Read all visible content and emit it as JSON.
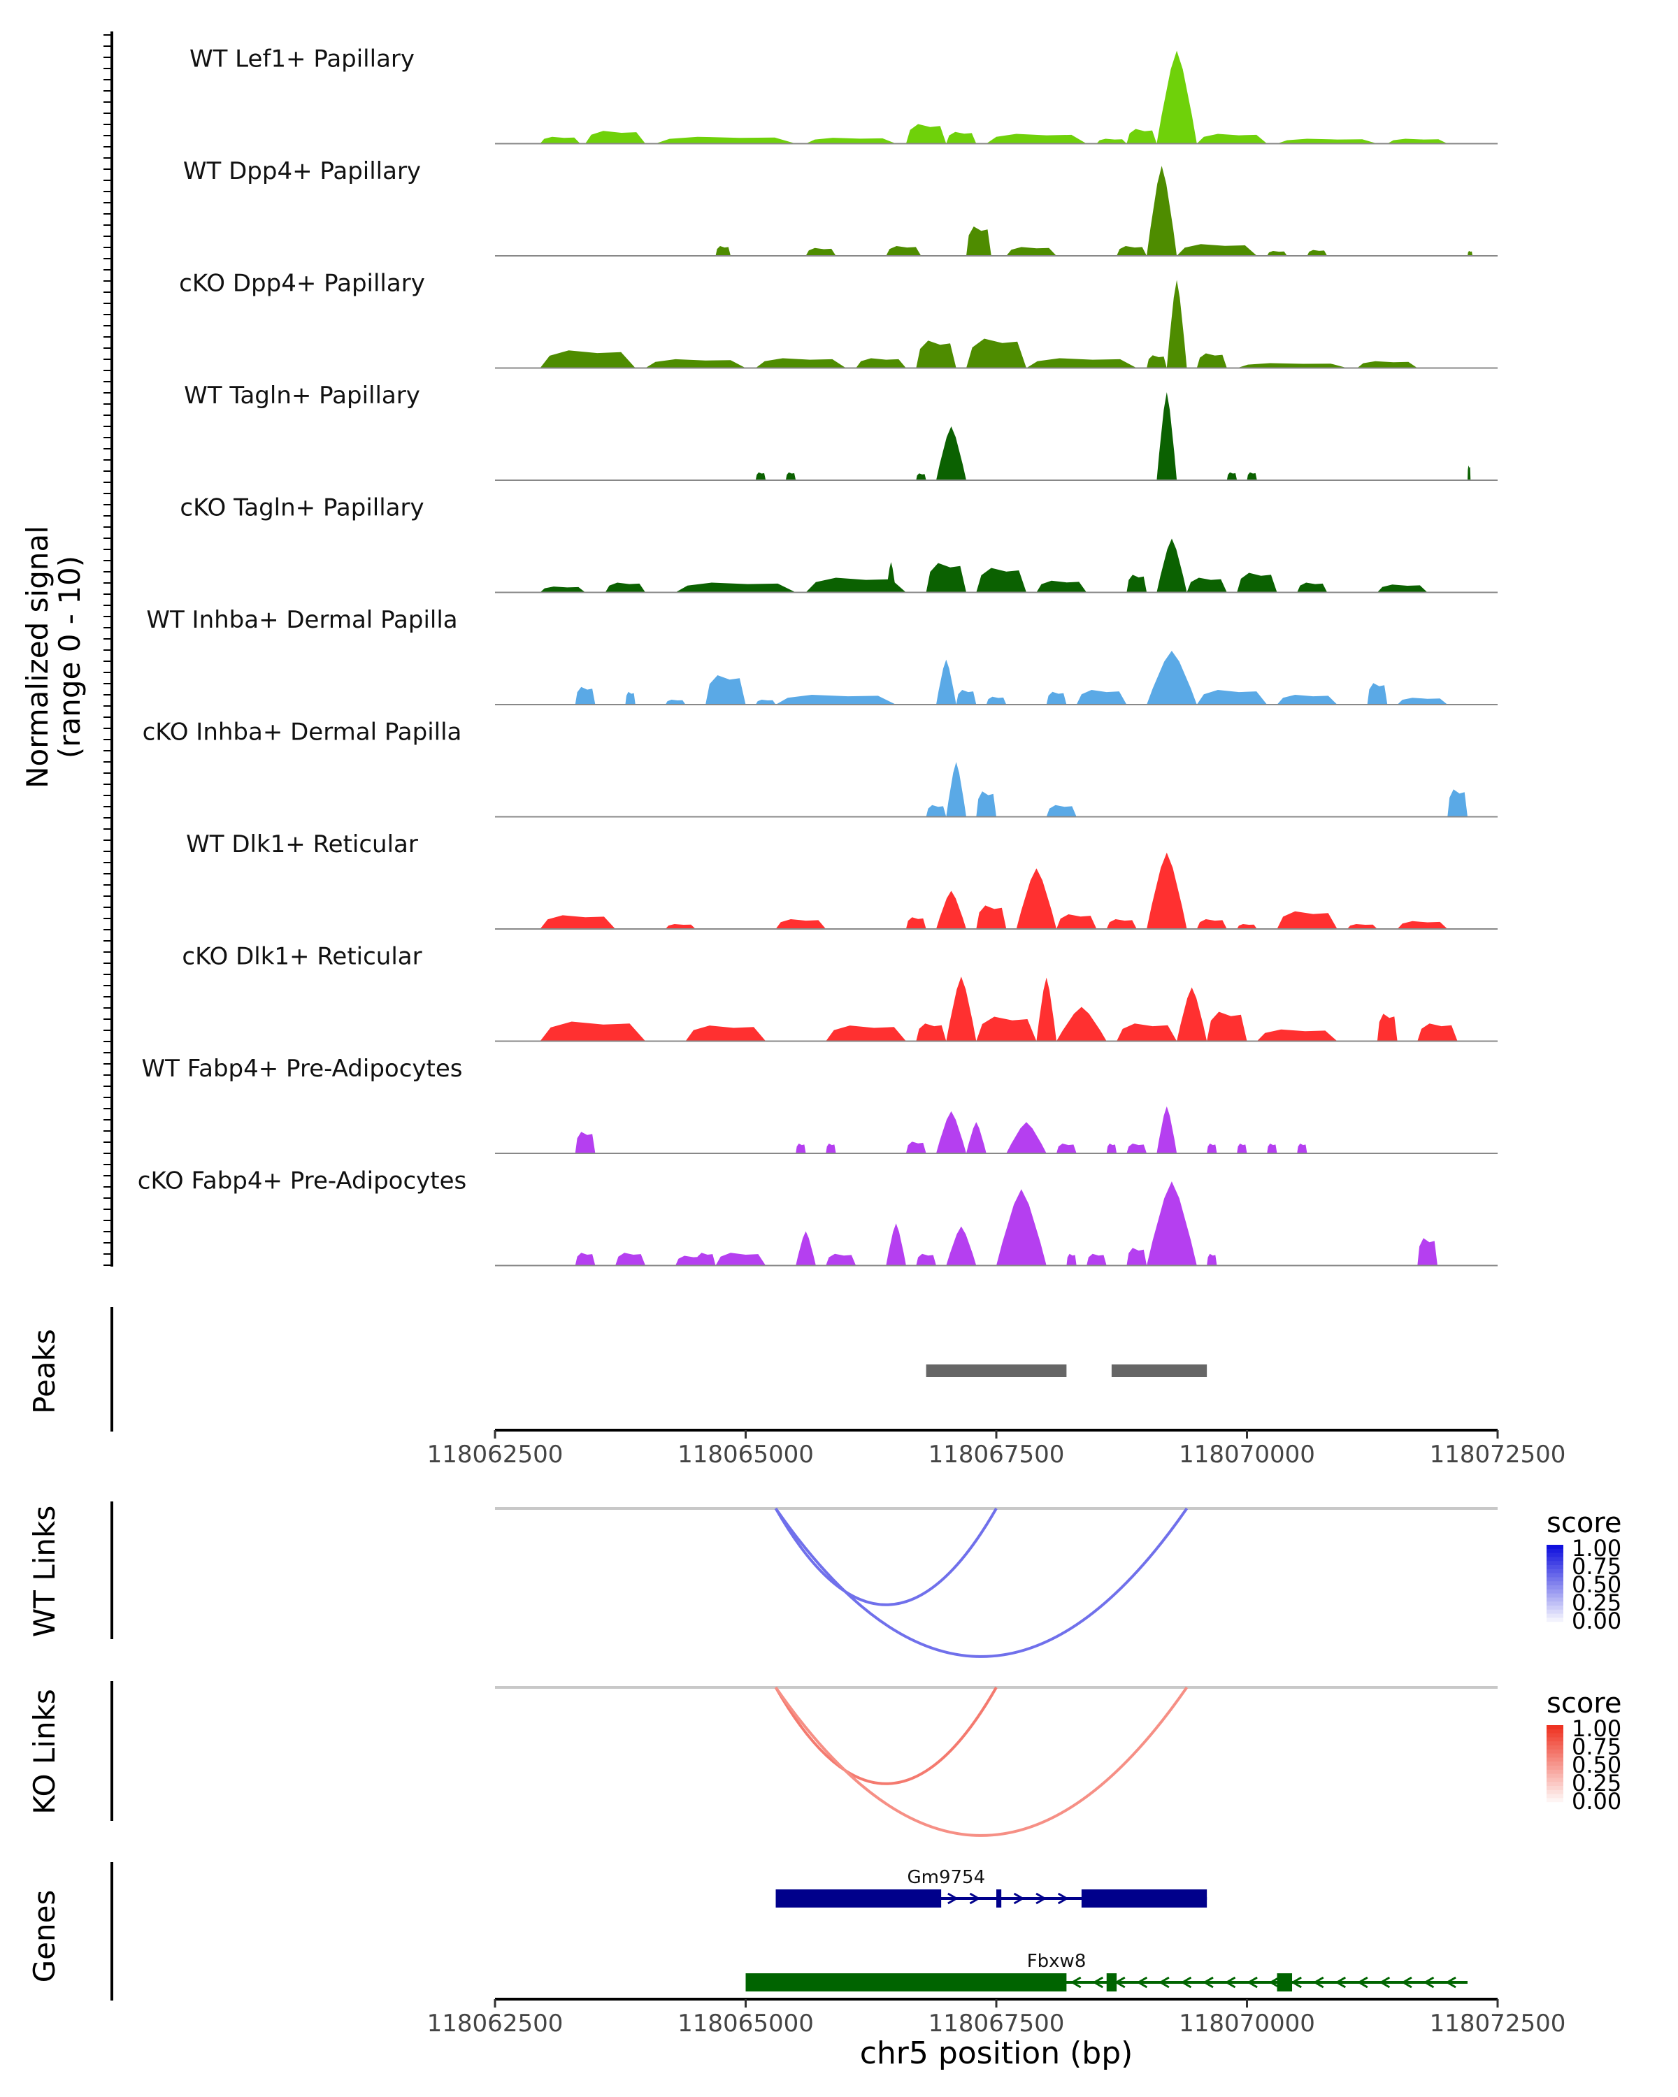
{
  "chart_data": {
    "type": "area",
    "title": "",
    "chromosome": "chr5",
    "xlim": [
      118062500,
      118072500
    ],
    "xlabel": "chr5 position (bp)",
    "x_ticks": [
      118062500,
      118065000,
      118067500,
      118070000,
      118072500
    ],
    "x_tick_labels": [
      "118062500",
      "118065000",
      "118067500",
      "118070000",
      "118072500"
    ],
    "coverage": {
      "ylabel_line1": "Normalized signal",
      "ylabel_line2": "(range 0 - 10)",
      "ylim": [
        0,
        10
      ],
      "tracks": [
        {
          "name": "WT Lef1+ Papillary",
          "color": "#6fd10a",
          "segments": [
            [
              118062950,
              118063350,
              0.7
            ],
            [
              118063400,
              118064000,
              1.3
            ],
            [
              118064100,
              118065500,
              0.7
            ],
            [
              118065600,
              118066500,
              0.6
            ],
            [
              118066600,
              118067000,
              2.0
            ],
            [
              118067000,
              118067300,
              1.2
            ],
            [
              118067400,
              118068400,
              1.0
            ],
            [
              118068500,
              118068800,
              0.5
            ],
            [
              118068800,
              118069100,
              1.5
            ],
            [
              118069100,
              118069500,
              9.5
            ],
            [
              118069500,
              118070200,
              1.0
            ],
            [
              118070300,
              118071300,
              0.5
            ],
            [
              118071400,
              118072000,
              0.5
            ]
          ]
        },
        {
          "name": "WT Dpp4+ Papillary",
          "color": "#4e8c00",
          "segments": [
            [
              118064700,
              118064850,
              1.0
            ],
            [
              118065600,
              118065900,
              0.8
            ],
            [
              118066400,
              118066750,
              1.0
            ],
            [
              118067200,
              118067450,
              3.0
            ],
            [
              118067600,
              118068100,
              0.9
            ],
            [
              118068700,
              118069000,
              1.0
            ],
            [
              118069000,
              118069300,
              9.2
            ],
            [
              118069300,
              118070100,
              1.2
            ],
            [
              118070200,
              118070400,
              0.5
            ],
            [
              118070600,
              118070800,
              0.6
            ],
            [
              118072200,
              118072250,
              0.5
            ]
          ]
        },
        {
          "name": "cKO Dpp4+ Papillary",
          "color": "#4e8c00",
          "segments": [
            [
              118062950,
              118063900,
              1.8
            ],
            [
              118064000,
              118065000,
              0.9
            ],
            [
              118065100,
              118066000,
              1.0
            ],
            [
              118066100,
              118066600,
              1.0
            ],
            [
              118066700,
              118067100,
              2.8
            ],
            [
              118067200,
              118067800,
              3.0
            ],
            [
              118067800,
              118068900,
              1.0
            ],
            [
              118069000,
              118069200,
              1.3
            ],
            [
              118069200,
              118069400,
              9.0
            ],
            [
              118069500,
              118069800,
              1.5
            ],
            [
              118069900,
              118071000,
              0.5
            ],
            [
              118071100,
              118071700,
              0.7
            ]
          ]
        },
        {
          "name": "WT Tagln+ Papillary",
          "color": "#0b6101",
          "segments": [
            [
              118065100,
              118065200,
              0.8
            ],
            [
              118065400,
              118065500,
              0.8
            ],
            [
              118066700,
              118066800,
              0.7
            ],
            [
              118066900,
              118067200,
              5.5
            ],
            [
              118069100,
              118069300,
              9.0
            ],
            [
              118069800,
              118069900,
              0.8
            ],
            [
              118070000,
              118070100,
              0.8
            ],
            [
              118072200,
              118072230,
              1.5
            ]
          ]
        },
        {
          "name": "cKO Tagln+ Papillary",
          "color": "#0b6101",
          "segments": [
            [
              118062950,
              118063400,
              0.6
            ],
            [
              118063600,
              118064000,
              1.0
            ],
            [
              118064300,
              118065500,
              1.0
            ],
            [
              118065600,
              118066600,
              1.5
            ],
            [
              118066400,
              118066500,
              3.1
            ],
            [
              118066800,
              118067200,
              3.0
            ],
            [
              118067300,
              118067800,
              2.5
            ],
            [
              118067900,
              118068400,
              1.2
            ],
            [
              118068800,
              118069000,
              1.8
            ],
            [
              118069100,
              118069400,
              5.5
            ],
            [
              118069400,
              118069800,
              1.5
            ],
            [
              118069900,
              118070300,
              2.0
            ],
            [
              118070500,
              118070800,
              1.0
            ],
            [
              118071300,
              118071800,
              0.8
            ]
          ]
        },
        {
          "name": "WT Inhba+ Dermal Papilla",
          "color": "#5aa9e6",
          "segments": [
            [
              118063300,
              118063500,
              1.8
            ],
            [
              118063800,
              118063900,
              1.3
            ],
            [
              118064200,
              118064400,
              0.5
            ],
            [
              118064600,
              118065000,
              3.0
            ],
            [
              118065100,
              118065300,
              0.5
            ],
            [
              118065300,
              118066500,
              1.0
            ],
            [
              118066900,
              118067100,
              4.6
            ],
            [
              118067100,
              118067300,
              1.5
            ],
            [
              118067400,
              118067600,
              0.8
            ],
            [
              118068000,
              118068200,
              1.3
            ],
            [
              118068300,
              118068800,
              1.5
            ],
            [
              118069000,
              118069500,
              5.5
            ],
            [
              118069500,
              118070200,
              1.5
            ],
            [
              118070300,
              118070900,
              1.0
            ],
            [
              118071200,
              118071400,
              2.2
            ],
            [
              118071500,
              118072000,
              0.7
            ]
          ]
        },
        {
          "name": "cKO Inhba+ Dermal Papilla",
          "color": "#5aa9e6",
          "segments": [
            [
              118066800,
              118067000,
              1.2
            ],
            [
              118067000,
              118067200,
              5.6
            ],
            [
              118067300,
              118067500,
              2.6
            ],
            [
              118068000,
              118068300,
              1.2
            ],
            [
              118072000,
              118072200,
              2.8
            ]
          ]
        },
        {
          "name": "WT Dlk1+ Reticular",
          "color": "#ff3030",
          "segments": [
            [
              118062950,
              118063700,
              1.4
            ],
            [
              118064200,
              118064500,
              0.5
            ],
            [
              118065300,
              118065800,
              1.0
            ],
            [
              118066600,
              118066800,
              1.2
            ],
            [
              118066900,
              118067200,
              3.9
            ],
            [
              118067300,
              118067600,
              2.4
            ],
            [
              118067700,
              118068100,
              6.2
            ],
            [
              118068100,
              118068500,
              1.5
            ],
            [
              118068600,
              118068900,
              1.0
            ],
            [
              118069000,
              118069400,
              7.8
            ],
            [
              118069500,
              118069800,
              1.0
            ],
            [
              118069900,
              118070100,
              0.5
            ],
            [
              118070300,
              118070900,
              1.8
            ],
            [
              118071000,
              118071300,
              0.5
            ],
            [
              118071500,
              118072000,
              0.8
            ]
          ]
        },
        {
          "name": "cKO Dlk1+ Reticular",
          "color": "#ff3030",
          "segments": [
            [
              118062950,
              118064000,
              2.0
            ],
            [
              118064400,
              118065200,
              1.6
            ],
            [
              118065800,
              118066600,
              1.6
            ],
            [
              118066700,
              118067000,
              1.8
            ],
            [
              118067000,
              118067300,
              6.6
            ],
            [
              118067300,
              118067900,
              2.5
            ],
            [
              118067900,
              118068100,
              6.5
            ],
            [
              118068100,
              118068600,
              3.5
            ],
            [
              118068700,
              118069300,
              1.8
            ],
            [
              118069300,
              118069600,
              5.5
            ],
            [
              118069600,
              118070000,
              3.0
            ],
            [
              118070100,
              118070900,
              1.2
            ],
            [
              118071300,
              118071500,
              2.8
            ],
            [
              118071700,
              118072100,
              1.8
            ]
          ]
        },
        {
          "name": "WT Fabp4+ Pre-Adipocytes",
          "color": "#b53ff0",
          "segments": [
            [
              118063300,
              118063500,
              2.2
            ],
            [
              118065500,
              118065600,
              1.0
            ],
            [
              118065800,
              118065900,
              1.0
            ],
            [
              118066600,
              118066800,
              1.2
            ],
            [
              118066900,
              118067200,
              4.3
            ],
            [
              118067200,
              118067400,
              3.2
            ],
            [
              118067600,
              118068000,
              3.2
            ],
            [
              118068100,
              118068300,
              1.0
            ],
            [
              118068600,
              118068700,
              1.0
            ],
            [
              118068800,
              118069000,
              1.0
            ],
            [
              118069100,
              118069300,
              4.8
            ],
            [
              118069600,
              118069700,
              1.0
            ],
            [
              118069900,
              118070000,
              1.0
            ],
            [
              118070200,
              118070300,
              1.0
            ],
            [
              118070500,
              118070600,
              1.0
            ]
          ]
        },
        {
          "name": "cKO Fabp4+ Pre-Adipocytes",
          "color": "#b53ff0",
          "segments": [
            [
              118063300,
              118063500,
              1.3
            ],
            [
              118063700,
              118064000,
              1.3
            ],
            [
              118064300,
              118064600,
              1.0
            ],
            [
              118064500,
              118064700,
              1.3
            ],
            [
              118064700,
              118065200,
              1.3
            ],
            [
              118065500,
              118065700,
              3.5
            ],
            [
              118065800,
              118066100,
              1.2
            ],
            [
              118066400,
              118066600,
              4.3
            ],
            [
              118066700,
              118066900,
              1.2
            ],
            [
              118067000,
              118067300,
              4.0
            ],
            [
              118067500,
              118068000,
              7.8
            ],
            [
              118068200,
              118068300,
              1.2
            ],
            [
              118068400,
              118068600,
              1.2
            ],
            [
              118068800,
              118069000,
              1.8
            ],
            [
              118069000,
              118069500,
              8.6
            ],
            [
              118069600,
              118069700,
              1.2
            ],
            [
              118071700,
              118071900,
              2.8
            ]
          ]
        }
      ]
    },
    "peaks": {
      "label": "Peaks",
      "regions": [
        [
          118066800,
          118068200
        ],
        [
          118068650,
          118069600
        ]
      ]
    },
    "links": [
      {
        "label": "WT Links",
        "legend_title": "score",
        "legend_ticks": [
          "1.00",
          "0.75",
          "0.50",
          "0.25",
          "0.00"
        ],
        "color_low": "#ffffff",
        "color_high": "#1010dd",
        "arcs": [
          {
            "start": 118065300,
            "end": 118067500,
            "score": 0.6
          },
          {
            "start": 118065300,
            "end": 118069400,
            "score": 0.6
          }
        ]
      },
      {
        "label": "KO Links",
        "legend_title": "score",
        "legend_ticks": [
          "1.00",
          "0.75",
          "0.50",
          "0.25",
          "0.00"
        ],
        "color_low": "#ffffff",
        "color_high": "#ee3322",
        "arcs": [
          {
            "start": 118065300,
            "end": 118067500,
            "score": 0.65
          },
          {
            "start": 118065300,
            "end": 118069400,
            "score": 0.55
          }
        ]
      }
    ],
    "genes": {
      "label": "Genes",
      "items": [
        {
          "name": "Gm9754",
          "strand": "+",
          "color": "#00008b",
          "start": 118065300,
          "end": 118069600,
          "exons": [
            [
              118065300,
              118066950
            ],
            [
              118067500,
              118067550
            ],
            [
              118068350,
              118069600
            ]
          ]
        },
        {
          "name": "Fbxw8",
          "strand": "-",
          "color": "#006400",
          "start": 118065000,
          "end": 118072200,
          "exons": [
            [
              118065000,
              118068200
            ],
            [
              118068600,
              118068700
            ],
            [
              118070300,
              118070450
            ]
          ]
        }
      ]
    }
  }
}
